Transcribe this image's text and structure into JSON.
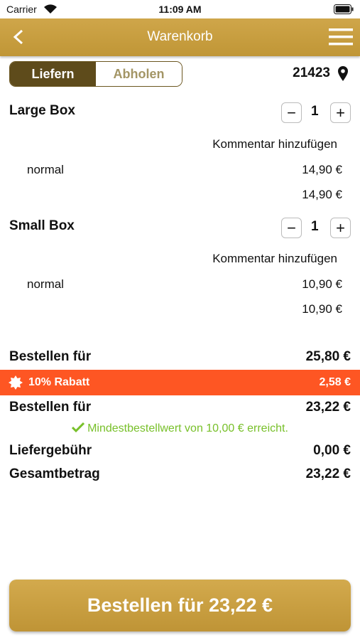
{
  "status_bar": {
    "carrier": "Carrier",
    "time": "11:09 AM"
  },
  "header": {
    "title": "Warenkorb"
  },
  "delivery_toggle": {
    "options": [
      "Liefern",
      "Abholen"
    ],
    "zip": "21423"
  },
  "items": [
    {
      "name": "Large Box",
      "quantity": 1,
      "comment": "Kommentar hinzufügen",
      "variant": "normal",
      "variant_price": "14,90 €",
      "total": "14,90 €"
    },
    {
      "name": "Small Box",
      "quantity": 1,
      "comment": "Kommentar hinzufügen",
      "variant": "normal",
      "variant_price": "10,90 €",
      "total": "10,90 €"
    }
  ],
  "summary": {
    "subtotal": {
      "label": "Bestellen für",
      "amount": "25,80 €"
    },
    "discount": {
      "label": "10% Rabatt",
      "amount": "2,58 €"
    },
    "after_discount": {
      "label": "Bestellen für",
      "amount": "23,22 €"
    },
    "minimum_notice": "Mindestbestellwert von 10,00 € erreicht.",
    "delivery_fee": {
      "label": "Liefergebühr",
      "amount": "0,00 €"
    },
    "total": {
      "label": "Gesamtbetrag",
      "amount": "23,22 €"
    }
  },
  "order_button": "Bestellen für 23,22 €"
}
